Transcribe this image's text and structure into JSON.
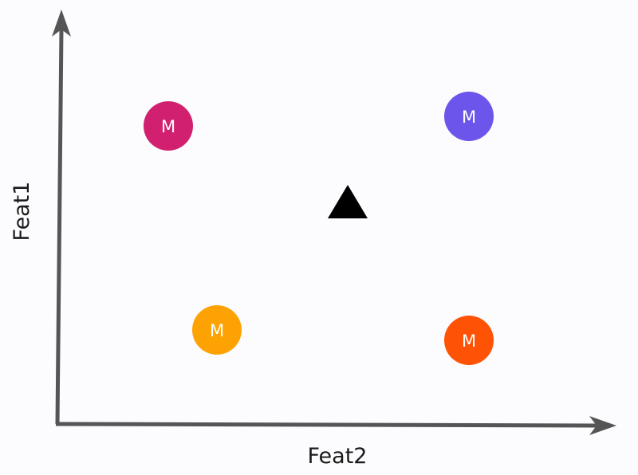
{
  "axes": {
    "x_label": "Feat2",
    "y_label": "Feat1",
    "axis_color": "#555555"
  },
  "points": [
    {
      "label": "M",
      "color": "#d1206f"
    },
    {
      "label": "M",
      "color": "#6b55ea"
    },
    {
      "label": "M",
      "color": "#fca303"
    },
    {
      "label": "M",
      "color": "#fe5204"
    }
  ],
  "query_point": {
    "shape": "triangle",
    "color": "#000000"
  },
  "colors": {
    "background": "#fcfbfd",
    "label_text": "#ffffff"
  }
}
